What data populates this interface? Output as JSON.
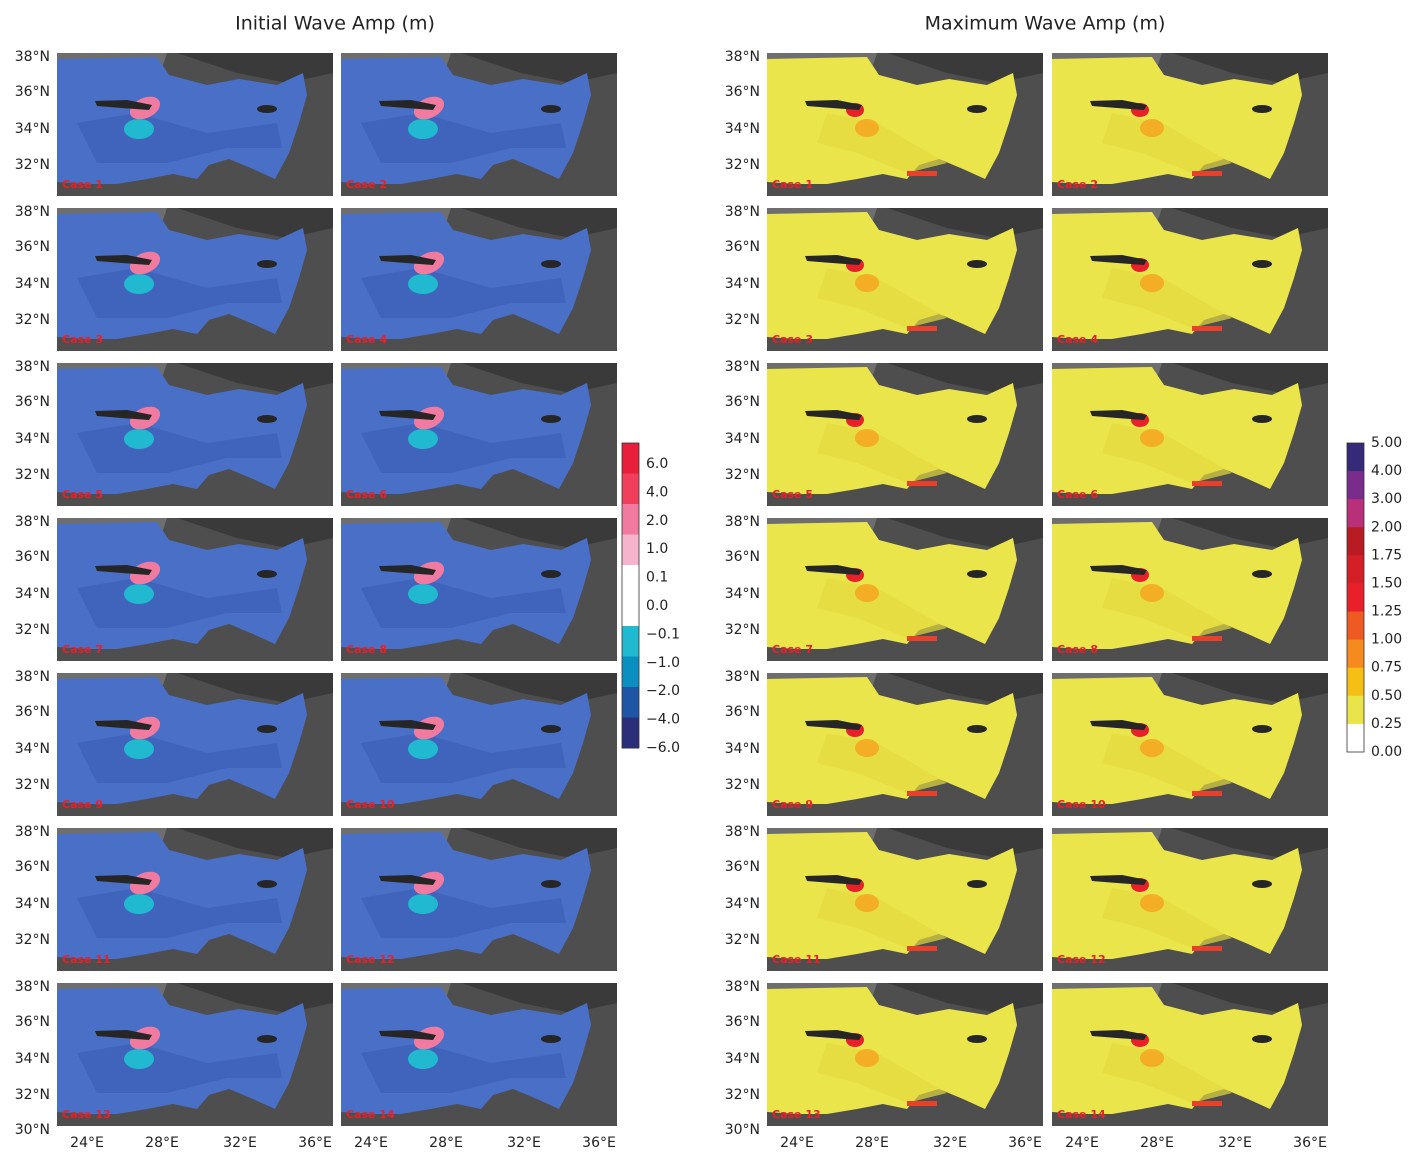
{
  "panels": [
    {
      "title": "Initial Wave Amp (m)",
      "cases": [
        "Case 1",
        "Case 2",
        "Case 3",
        "Case 4",
        "Case 5",
        "Case 6",
        "Case 7",
        "Case 8",
        "Case 9",
        "Case 10",
        "Case 11",
        "Case 12",
        "Case 13",
        "Case 14"
      ],
      "sea_color": "#4a6fc6",
      "colorbar": {
        "labels": [
          "6.0",
          "4.0",
          "2.0",
          "1.0",
          "0.1",
          "0.0",
          "−0.1",
          "−1.0",
          "−2.0",
          "−4.0",
          "−6.0"
        ],
        "colors": [
          "#e81f3a",
          "#ef3f5d",
          "#f07aa0",
          "#f5b3cc",
          "#ffffff",
          "#ffffff",
          "#20b9cf",
          "#0a8fc0",
          "#1f55a5",
          "#2b2f7a"
        ]
      }
    },
    {
      "title": "Maximum Wave Amp (m)",
      "cases": [
        "Case 1",
        "Case 2",
        "Case 3",
        "Case 4",
        "Case 5",
        "Case 6",
        "Case 7",
        "Case 8",
        "Case 9",
        "Case 10",
        "Case 11",
        "Case 12",
        "Case 13",
        "Case 14"
      ],
      "sea_color": "#ebe54c",
      "colorbar": {
        "labels": [
          "5.00",
          "4.00",
          "3.00",
          "2.00",
          "1.75",
          "1.50",
          "1.25",
          "1.00",
          "0.75",
          "0.50",
          "0.25",
          "0.00"
        ],
        "colors": [
          "#352a78",
          "#7a2c8c",
          "#b8307a",
          "#b81c22",
          "#d51f26",
          "#e8202a",
          "#ef5a23",
          "#f58a1e",
          "#f6bf16",
          "#e8e44a",
          "#ffffff"
        ]
      }
    }
  ],
  "lat_labels": [
    "38°N",
    "36°N",
    "34°N",
    "32°N"
  ],
  "bottom_lat_label": "30°N",
  "lon_labels": [
    "24°E",
    "28°E",
    "32°E",
    "36°E"
  ]
}
